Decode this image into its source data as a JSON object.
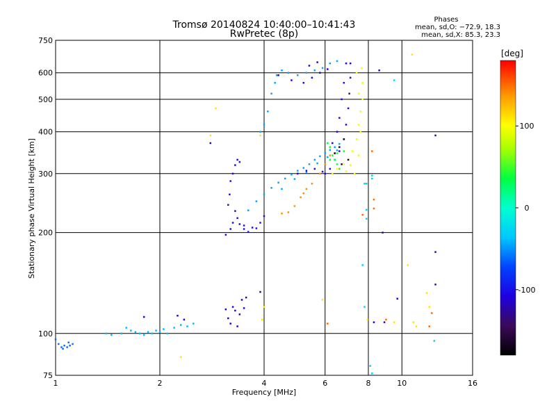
{
  "chart_data": {
    "type": "scatter",
    "title": "Tromsø 20140824 10:40:00–10:41:43",
    "subtitle": "RwPretec (8p)",
    "stats": {
      "heading": "Phases",
      "line1": "mean, sd,O: −72.9, 18.3",
      "line2": "mean, sd,X:  85.3, 23.3"
    },
    "xlabel": "Frequency [MHz]",
    "ylabel": "Stationary phase Virtual Height [km]",
    "x_scale": "log2",
    "y_scale": "log",
    "xlim": [
      1,
      16
    ],
    "ylim": [
      75,
      750
    ],
    "x_ticks": [
      1,
      2,
      4,
      6,
      8,
      10,
      16
    ],
    "x_tick_labels": [
      "1",
      "2",
      "4",
      "6",
      "8",
      "10",
      "16"
    ],
    "y_ticks": [
      75,
      100,
      200,
      300,
      400,
      500,
      600,
      750
    ],
    "y_tick_labels": [
      "75",
      "100",
      "200",
      "300",
      "400",
      "500",
      "600",
      "750"
    ],
    "grid": true,
    "colorbar": {
      "label": "[deg]",
      "range": [
        -180,
        180
      ],
      "ticks": [
        100,
        0,
        -100
      ],
      "tick_labels": [
        "100",
        "0",
        "-100"
      ],
      "colormap": "rainbow"
    },
    "series": [
      {
        "name": "",
        "color_value": -60,
        "points": [
          [
            1.0,
            96
          ],
          [
            1.02,
            93
          ],
          [
            1.04,
            91
          ],
          [
            1.06,
            92
          ],
          [
            1.08,
            91
          ],
          [
            1.1,
            92
          ],
          [
            1.12,
            93
          ],
          [
            1.05,
            90
          ],
          [
            1.09,
            94
          ]
        ]
      },
      {
        "name": "",
        "color_value": -40,
        "points": [
          [
            1.4,
            100
          ],
          [
            1.45,
            99
          ],
          [
            1.55,
            100
          ],
          [
            1.6,
            104
          ],
          [
            1.65,
            102
          ],
          [
            1.7,
            101
          ],
          [
            1.75,
            100
          ],
          [
            1.8,
            99
          ],
          [
            1.85,
            101
          ],
          [
            1.9,
            100
          ],
          [
            1.95,
            102
          ],
          [
            2.0,
            101
          ],
          [
            2.05,
            103
          ],
          [
            2.1,
            100
          ],
          [
            2.2,
            104
          ],
          [
            2.3,
            106
          ],
          [
            2.4,
            105
          ],
          [
            2.5,
            107
          ]
        ]
      },
      {
        "name": "",
        "color_value": -110,
        "points": [
          [
            1.8,
            112
          ],
          [
            2.25,
            113
          ],
          [
            2.35,
            110
          ],
          [
            3.1,
            118
          ],
          [
            3.15,
            111
          ],
          [
            3.2,
            107
          ],
          [
            3.25,
            120
          ],
          [
            3.3,
            117
          ],
          [
            3.35,
            105
          ],
          [
            3.4,
            114
          ],
          [
            3.45,
            126
          ],
          [
            3.5,
            119
          ],
          [
            3.55,
            128
          ]
        ]
      },
      {
        "name": "",
        "color_value": -100,
        "points": [
          [
            3.15,
            242
          ],
          [
            3.18,
            260
          ],
          [
            3.2,
            285
          ],
          [
            3.25,
            300
          ],
          [
            3.3,
            318
          ],
          [
            3.35,
            330
          ],
          [
            3.4,
            325
          ],
          [
            3.3,
            232
          ],
          [
            3.35,
            221
          ],
          [
            3.4,
            212
          ],
          [
            3.5,
            205
          ],
          [
            3.6,
            201
          ],
          [
            3.8,
            206
          ],
          [
            3.9,
            214
          ],
          [
            4.0,
            224
          ],
          [
            3.25,
            214
          ],
          [
            3.2,
            205
          ],
          [
            3.1,
            197
          ],
          [
            3.5,
            210
          ],
          [
            3.7,
            207
          ]
        ]
      },
      {
        "name": "",
        "color_value": -45,
        "points": [
          [
            3.6,
            233
          ],
          [
            3.8,
            248
          ],
          [
            4.0,
            260
          ],
          [
            4.2,
            272
          ],
          [
            4.4,
            282
          ],
          [
            4.6,
            290
          ],
          [
            4.8,
            298
          ],
          [
            5.0,
            306
          ],
          [
            5.2,
            312
          ],
          [
            5.4,
            320
          ],
          [
            5.6,
            330
          ],
          [
            5.8,
            338
          ],
          [
            6.0,
            346
          ],
          [
            6.2,
            353
          ],
          [
            6.4,
            360
          ],
          [
            6.6,
            368
          ],
          [
            4.5,
            270
          ],
          [
            4.9,
            289
          ],
          [
            5.3,
            303
          ],
          [
            5.7,
            322
          ],
          [
            6.1,
            336
          ],
          [
            6.5,
            352
          ]
        ]
      },
      {
        "name": "",
        "color_value": -105,
        "points": [
          [
            5.0,
            300
          ],
          [
            5.3,
            306
          ],
          [
            5.6,
            310
          ],
          [
            5.9,
            304
          ],
          [
            6.0,
            300
          ],
          [
            6.2,
            310
          ],
          [
            6.4,
            330
          ],
          [
            6.6,
            350
          ],
          [
            6.8,
            380
          ],
          [
            6.9,
            420
          ],
          [
            7.0,
            470
          ],
          [
            7.05,
            520
          ],
          [
            7.1,
            580
          ],
          [
            7.1,
            640
          ],
          [
            6.9,
            640
          ],
          [
            6.8,
            560
          ],
          [
            6.7,
            500
          ],
          [
            6.6,
            440
          ],
          [
            6.5,
            400
          ],
          [
            6.3,
            370
          ]
        ]
      },
      {
        "name": "",
        "color_value": -45,
        "points": [
          [
            3.9,
            400
          ],
          [
            4.0,
            420
          ],
          [
            4.1,
            460
          ],
          [
            4.2,
            520
          ],
          [
            4.3,
            560
          ],
          [
            4.35,
            590
          ],
          [
            4.5,
            610
          ],
          [
            4.7,
            600
          ],
          [
            5.0,
            590
          ],
          [
            5.3,
            600
          ],
          [
            5.6,
            610
          ],
          [
            5.9,
            620
          ],
          [
            6.2,
            640
          ],
          [
            6.5,
            650
          ]
        ]
      },
      {
        "name": "",
        "color_value": -110,
        "points": [
          [
            4.4,
            590
          ],
          [
            4.8,
            570
          ],
          [
            5.2,
            560
          ],
          [
            5.5,
            580
          ],
          [
            5.8,
            600
          ],
          [
            6.1,
            615
          ],
          [
            5.4,
            630
          ],
          [
            5.7,
            645
          ]
        ]
      },
      {
        "name": "",
        "color_value": 35,
        "points": [
          [
            6.1,
            370
          ],
          [
            6.2,
            360
          ],
          [
            6.3,
            340
          ],
          [
            6.4,
            330
          ],
          [
            6.5,
            320
          ],
          [
            6.6,
            310
          ],
          [
            6.2,
            330
          ],
          [
            6.5,
            345
          ],
          [
            6.8,
            350
          ]
        ]
      },
      {
        "name": "",
        "color_value": 95,
        "points": [
          [
            6.3,
            300
          ],
          [
            6.5,
            310
          ],
          [
            6.8,
            320
          ],
          [
            7.0,
            330
          ],
          [
            7.2,
            350
          ],
          [
            7.4,
            380
          ],
          [
            7.5,
            420
          ],
          [
            7.6,
            460
          ],
          [
            7.7,
            500
          ],
          [
            7.7,
            560
          ],
          [
            7.65,
            620
          ],
          [
            7.3,
            300
          ],
          [
            7.5,
            340
          ],
          [
            7.6,
            400
          ],
          [
            7.5,
            520
          ],
          [
            7.4,
            600
          ],
          [
            6.9,
            305
          ],
          [
            7.1,
            318
          ]
        ]
      },
      {
        "name": "",
        "color_value": 140,
        "points": [
          [
            4.5,
            228
          ],
          [
            4.7,
            230
          ],
          [
            4.9,
            240
          ],
          [
            5.1,
            255
          ],
          [
            5.2,
            262
          ],
          [
            5.3,
            270
          ],
          [
            5.5,
            280
          ],
          [
            5.8,
            300
          ],
          [
            6.0,
            320
          ],
          [
            6.2,
            340
          ],
          [
            6.4,
            345
          ]
        ]
      },
      {
        "name": "",
        "color_value": -165,
        "points": [
          [
            6.4,
            345
          ],
          [
            6.6,
            360
          ],
          [
            6.8,
            380
          ],
          [
            6.7,
            320
          ],
          [
            7.0,
            330
          ]
        ]
      },
      {
        "name": "",
        "color_value": -30,
        "points": [
          [
            7.8,
            280
          ],
          [
            7.9,
            280
          ],
          [
            7.9,
            234
          ],
          [
            7.9,
            220
          ],
          [
            7.7,
            160
          ],
          [
            7.8,
            120
          ],
          [
            8.1,
            80
          ],
          [
            8.2,
            76
          ],
          [
            8.2,
            296
          ],
          [
            8.2,
            290
          ],
          [
            12.4,
            95
          ],
          [
            9.5,
            570
          ]
        ]
      },
      {
        "name": "",
        "color_value": 150,
        "points": [
          [
            8.2,
            350
          ],
          [
            8.3,
            251
          ],
          [
            8.3,
            236
          ],
          [
            7.7,
            226
          ],
          [
            12.2,
            115
          ],
          [
            12.0,
            105
          ],
          [
            9.0,
            110
          ],
          [
            6.1,
            107
          ]
        ]
      },
      {
        "name": "",
        "color_value": 110,
        "points": [
          [
            2.8,
            390
          ],
          [
            2.9,
            470
          ],
          [
            3.9,
            390
          ],
          [
            3.95,
            110
          ],
          [
            4.0,
            120
          ],
          [
            2.3,
            85
          ],
          [
            7.95,
            110
          ],
          [
            9.5,
            108
          ],
          [
            10.8,
            108
          ],
          [
            11.0,
            105
          ],
          [
            11.8,
            132
          ],
          [
            12.0,
            120
          ],
          [
            10.7,
            680
          ],
          [
            10.4,
            160
          ],
          [
            5.9,
            126
          ]
        ]
      },
      {
        "name": "",
        "color_value": -120,
        "points": [
          [
            2.8,
            370
          ],
          [
            3.9,
            133
          ],
          [
            8.3,
            108
          ],
          [
            8.9,
            108
          ],
          [
            8.8,
            200
          ],
          [
            9.7,
            127
          ],
          [
            12.5,
            175
          ],
          [
            12.5,
            140
          ],
          [
            12.5,
            390
          ],
          [
            8.6,
            610
          ]
        ]
      }
    ]
  }
}
